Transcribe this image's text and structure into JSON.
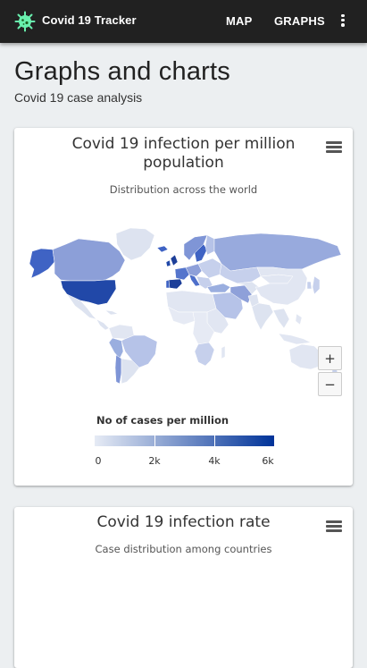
{
  "appbar": {
    "title": "Covid 19 Tracker",
    "logo_icon": "virus-icon",
    "nav": [
      {
        "label": "MAP"
      },
      {
        "label": "GRAPHS"
      }
    ],
    "menu_icon": "more-vert-icon"
  },
  "page": {
    "title": "Graphs and charts",
    "subtitle": "Covid 19 case analysis"
  },
  "cards": [
    {
      "title": "Covid 19 infection per million population",
      "subtitle": "Distribution across the world",
      "menu_icon": "hamburger-menu-icon",
      "zoom_in_label": "+",
      "zoom_out_label": "−",
      "legend": {
        "title": "No of cases per million",
        "labels": [
          "0",
          "2k",
          "4k",
          "6k"
        ],
        "min_color": "#e6ebf5",
        "max_color": "#003399"
      }
    },
    {
      "title": "Covid 19 infection rate",
      "subtitle": "Case distribution among countries",
      "menu_icon": "hamburger-menu-icon"
    }
  ],
  "colors": {
    "appbar": "#212121",
    "background": "#eceff1",
    "logo_accent": "#69f0ae"
  }
}
